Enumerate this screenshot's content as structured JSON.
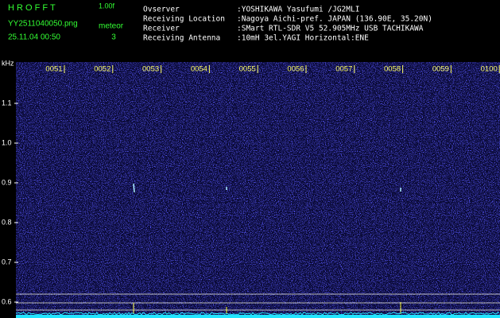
{
  "header": {
    "app": "H R O F F T",
    "version": "1.00f",
    "file": "YY2511040050.png",
    "meteor_label": "meteor",
    "meteor_count": 3,
    "datetime": "25.11.04 00:50"
  },
  "info": [
    {
      "label": "Ovserver",
      "value": ":YOSHIKAWA Yasufumi /JG2MLI"
    },
    {
      "label": "Receiving Location",
      "value": ":Nagoya Aichi-pref. JAPAN (136.90E, 35.20N)"
    },
    {
      "label": "Receiver",
      "value": ":SMart RTL-SDR V5 52.905MHz USB TACHIKAWA"
    },
    {
      "label": "Receiving Antenna",
      "value": ":10mH 3el.YAGI Horizontal:ENE"
    }
  ],
  "chart_data": {
    "type": "spectrogram",
    "y_label": "kHz",
    "categories": [
      "0051",
      "0052",
      "0053",
      "0054",
      "0055",
      "0056",
      "0057",
      "0058",
      "0059",
      "0100"
    ],
    "ylim": [
      0.57,
      1.19
    ],
    "yticks": [
      1.1,
      {
        "value": 1.0,
        "label": "1.0"
      },
      0.9,
      0.8,
      0.7,
      0.6
    ]
  }
}
